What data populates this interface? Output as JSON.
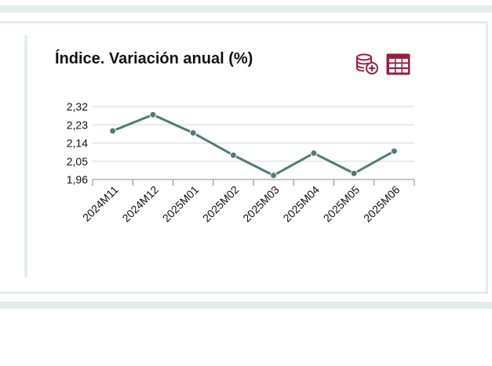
{
  "widget": {
    "title": "Índice. Variación anual (%)",
    "icons": {
      "add_data": "database-plus-icon",
      "table": "table-icon"
    },
    "accent_color": "#9c1c3c",
    "line_color": "#4d7d72"
  },
  "chart_data": {
    "type": "line",
    "title": "Índice. Variación anual (%)",
    "categories": [
      "2024M11",
      "2024M12",
      "2025M01",
      "2025M02",
      "2025M03",
      "2025M04",
      "2025M05",
      "2025M06"
    ],
    "series": [
      {
        "values": [
          2.2,
          2.28,
          2.19,
          2.08,
          1.98,
          2.09,
          1.99,
          2.1
        ]
      }
    ],
    "yticks": [
      "2,32",
      "2,23",
      "2,14",
      "2,05",
      "1,96"
    ],
    "ylim": [
      1.96,
      2.32
    ],
    "grid": true,
    "legend": "none"
  }
}
